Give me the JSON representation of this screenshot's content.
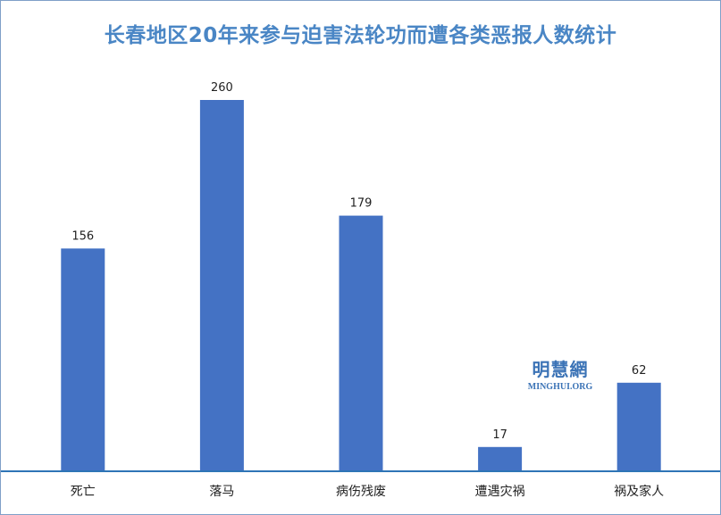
{
  "chart_data": {
    "type": "bar",
    "title": "长春地区20年来参与迫害法轮功而遭各类恶报人数统计",
    "categories": [
      "死亡",
      "落马",
      "病伤残废",
      "遭遇灾祸",
      "祸及家人"
    ],
    "values": [
      156,
      260,
      179,
      17,
      62
    ],
    "ylim": [
      0,
      280
    ],
    "grid": false,
    "bar_color": "#4472c4",
    "axis_color": "#2e75b6"
  },
  "watermark": {
    "cn": "明慧網",
    "en": "MINGHUI.ORG"
  }
}
